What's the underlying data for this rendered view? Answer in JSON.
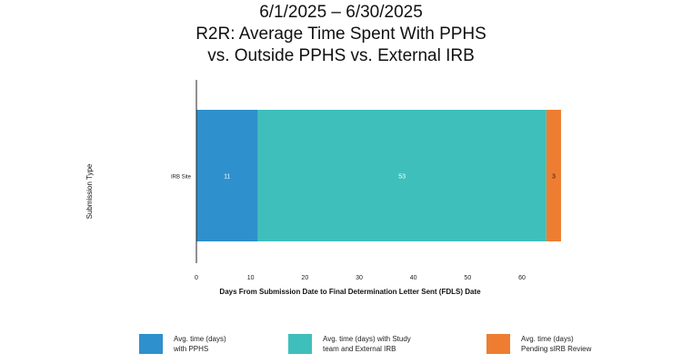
{
  "chart_data": {
    "type": "bar",
    "orientation": "horizontal",
    "stacked": true,
    "title": [
      "6/1/2025 – 6/30/2025",
      "R2R: Average Time Spent With PPHS",
      "vs. Outside PPHS vs. External IRB"
    ],
    "xlabel": "Days From Submission Date to Final Determination Letter Sent (FDLS) Date",
    "ylabel": "Submission Type",
    "categories": [
      "IRB Site"
    ],
    "xlim": [
      0,
      67
    ],
    "xticks": [
      0,
      10,
      20,
      30,
      40,
      50,
      60
    ],
    "grid": false,
    "legend_position": "bottom",
    "series": [
      {
        "name": "Avg. time (days)\nwith PPHS",
        "values": [
          11.3
        ],
        "label": "11",
        "color": "#2e90cc"
      },
      {
        "name": "Avg. time (days) with Study\nteam and External IRB",
        "values": [
          53.2
        ],
        "label": "53",
        "color": "#3fbfbb"
      },
      {
        "name": "Avg. time (days)\nPending sIRB Review",
        "values": [
          2.7
        ],
        "label": "3",
        "color": "#ee7d31"
      }
    ]
  }
}
